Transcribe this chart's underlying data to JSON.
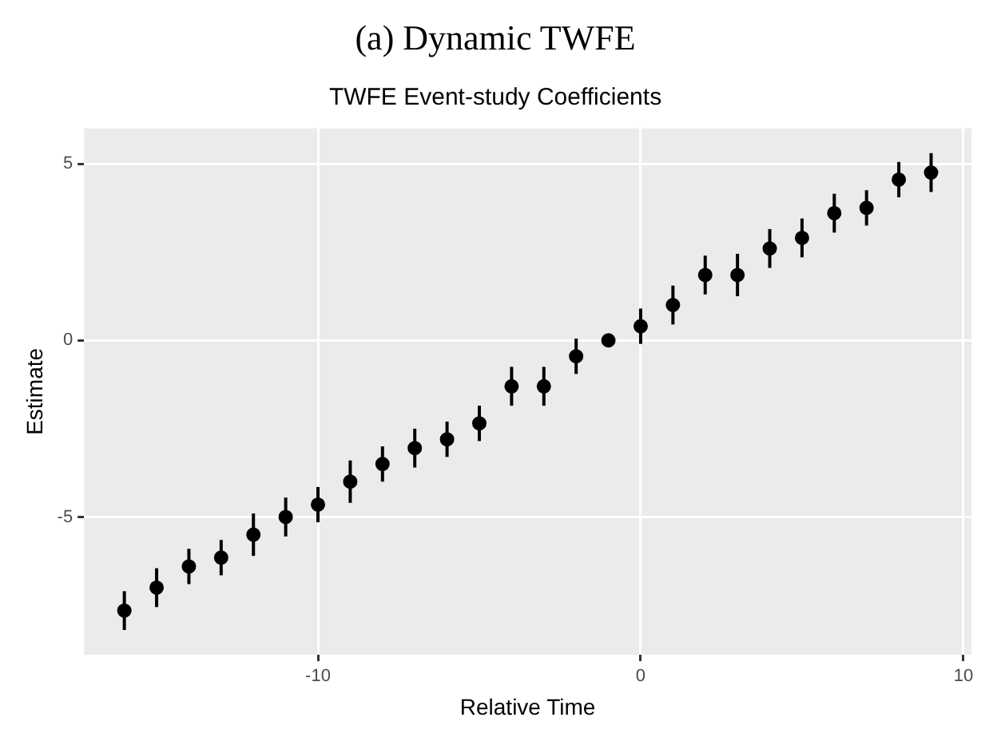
{
  "chart_data": {
    "type": "scatter",
    "title": "(a) Dynamic TWFE",
    "subtitle": "TWFE Event-study Coefficients",
    "xlabel": "Relative Time",
    "ylabel": "Estimate",
    "x": [
      -16,
      -15,
      -14,
      -13,
      -12,
      -11,
      -10,
      -9,
      -8,
      -7,
      -6,
      -5,
      -4,
      -3,
      -2,
      -1,
      0,
      1,
      2,
      3,
      4,
      5,
      6,
      7,
      8,
      9
    ],
    "series": [
      {
        "color": "#000000",
        "values": [
          -7.65,
          -7.0,
          -6.4,
          -6.15,
          -5.5,
          -5.0,
          -4.65,
          -4.0,
          -3.5,
          -3.05,
          -2.8,
          -2.35,
          -1.3,
          -1.3,
          -0.45,
          0,
          0.4,
          1.0,
          1.85,
          1.85,
          2.6,
          2.9,
          3.6,
          3.75,
          4.55,
          4.75
        ],
        "errors": [
          0.55,
          0.55,
          0.5,
          0.5,
          0.6,
          0.55,
          0.5,
          0.6,
          0.5,
          0.55,
          0.5,
          0.5,
          0.55,
          0.55,
          0.5,
          null,
          0.5,
          0.55,
          0.55,
          0.6,
          0.55,
          0.55,
          0.55,
          0.5,
          0.5,
          0.55
        ]
      }
    ],
    "xlim": [
      -17.25,
      10.25
    ],
    "ylim": [
      -8.9,
      6.0
    ],
    "xticks": [
      -10,
      0,
      10
    ],
    "yticks": [
      -5,
      0,
      5
    ],
    "grid": true,
    "marker": "circle",
    "legend": false
  }
}
